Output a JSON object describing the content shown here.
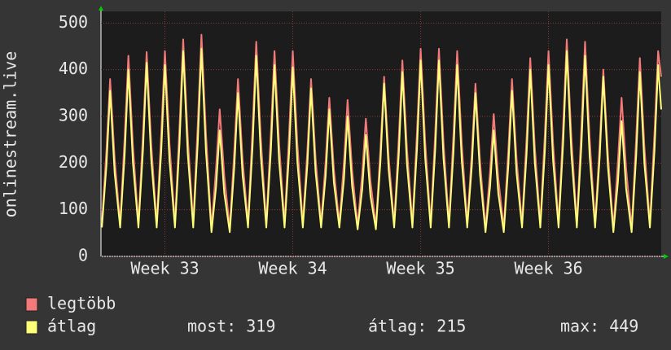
{
  "chart_data": {
    "type": "line",
    "y_label": "onlinestream.live",
    "xlim": [
      0,
      30.67
    ],
    "xticks": [
      {
        "value": 3.5,
        "label": "Week 33"
      },
      {
        "value": 10.5,
        "label": "Week 34"
      },
      {
        "value": 17.5,
        "label": "Week 35"
      },
      {
        "value": 24.5,
        "label": "Week 36"
      }
    ],
    "ylim": [
      0,
      525
    ],
    "yticks": [
      0,
      100,
      200,
      300,
      400,
      500
    ],
    "grid": true,
    "x": [
      0.05,
      0.3,
      0.5,
      0.75,
      1.05,
      1.3,
      1.5,
      1.75,
      2.05,
      2.3,
      2.5,
      2.75,
      3.05,
      3.3,
      3.5,
      3.75,
      4.05,
      4.3,
      4.5,
      4.75,
      5.05,
      5.3,
      5.5,
      5.75,
      6.05,
      6.3,
      6.5,
      6.75,
      7.05,
      7.3,
      7.5,
      7.75,
      8.05,
      8.3,
      8.5,
      8.75,
      9.05,
      9.3,
      9.5,
      9.75,
      10.05,
      10.3,
      10.5,
      10.75,
      11.05,
      11.3,
      11.5,
      11.75,
      12.05,
      12.3,
      12.5,
      12.75,
      13.05,
      13.3,
      13.5,
      13.75,
      14.05,
      14.3,
      14.5,
      14.75,
      15.05,
      15.3,
      15.5,
      15.75,
      16.05,
      16.3,
      16.5,
      16.75,
      17.05,
      17.3,
      17.5,
      17.75,
      18.05,
      18.3,
      18.5,
      18.75,
      19.05,
      19.3,
      19.5,
      19.75,
      20.05,
      20.3,
      20.5,
      20.75,
      21.05,
      21.3,
      21.5,
      21.75,
      22.05,
      22.3,
      22.5,
      22.75,
      23.05,
      23.3,
      23.5,
      23.75,
      24.05,
      24.3,
      24.5,
      24.75,
      25.05,
      25.3,
      25.5,
      25.75,
      26.05,
      26.3,
      26.5,
      26.75,
      27.05,
      27.3,
      27.5,
      27.75,
      28.05,
      28.3,
      28.5,
      28.75,
      29.05,
      29.3,
      29.5,
      29.75,
      30.05,
      30.3,
      30.5,
      30.67
    ],
    "series": [
      {
        "name": "legtöbb",
        "color": "#f47a7a",
        "values": [
          70,
          228,
          380,
          209,
          70,
          258,
          430,
          237,
          70,
          263,
          438,
          241,
          70,
          264,
          440,
          242,
          70,
          279,
          465,
          256,
          70,
          285,
          475,
          261,
          60,
          189,
          315,
          173,
          60,
          228,
          380,
          209,
          70,
          276,
          460,
          253,
          70,
          264,
          440,
          242,
          70,
          264,
          440,
          242,
          70,
          228,
          380,
          209,
          70,
          204,
          340,
          187,
          70,
          201,
          335,
          184,
          65,
          177,
          295,
          162,
          65,
          231,
          385,
          212,
          70,
          252,
          420,
          231,
          70,
          267,
          445,
          245,
          70,
          267,
          445,
          245,
          70,
          264,
          440,
          242,
          70,
          222,
          370,
          204,
          60,
          183,
          305,
          168,
          60,
          228,
          380,
          209,
          70,
          255,
          425,
          234,
          70,
          264,
          440,
          242,
          70,
          279,
          465,
          256,
          70,
          276,
          460,
          253,
          70,
          240,
          400,
          220,
          60,
          204,
          340,
          187,
          60,
          255,
          425,
          234,
          70,
          264,
          440,
          385
        ]
      },
      {
        "name": "átlag",
        "color": "#ffff7a",
        "values": [
          62,
          195,
          355,
          178,
          62,
          220,
          400,
          200,
          62,
          228,
          415,
          208,
          62,
          226,
          410,
          205,
          62,
          242,
          440,
          220,
          62,
          245,
          445,
          223,
          52,
          149,
          270,
          135,
          52,
          193,
          350,
          175,
          62,
          237,
          430,
          215,
          62,
          226,
          410,
          205,
          62,
          223,
          405,
          203,
          62,
          198,
          360,
          180,
          62,
          173,
          315,
          158,
          62,
          165,
          300,
          150,
          58,
          143,
          260,
          130,
          58,
          204,
          370,
          185,
          62,
          217,
          395,
          198,
          62,
          231,
          420,
          210,
          62,
          231,
          420,
          210,
          62,
          226,
          410,
          205,
          62,
          193,
          350,
          175,
          52,
          149,
          270,
          135,
          52,
          195,
          355,
          178,
          62,
          220,
          400,
          200,
          62,
          226,
          410,
          205,
          62,
          242,
          440,
          220,
          62,
          237,
          430,
          215,
          62,
          212,
          385,
          193,
          52,
          160,
          290,
          145,
          52,
          217,
          395,
          198,
          62,
          226,
          410,
          315
        ]
      }
    ],
    "stats": [
      "most: 319",
      "átlag: 215",
      "max: 449"
    ]
  }
}
